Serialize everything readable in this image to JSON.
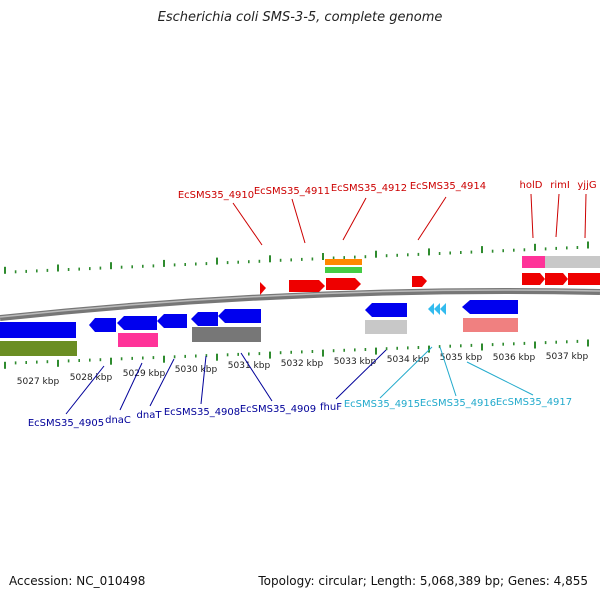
{
  "title": "Escherichia coli SMS-3-5, complete genome",
  "footer": {
    "accession": "Accession: NC_010498",
    "summary": "Topology: circular; Length: 5,068,389 bp; Genes: 4,855"
  },
  "colors": {
    "red_label": "#cc0000",
    "navy_label": "#000099",
    "cyan_label": "#22aacc",
    "tick": "#2e8b2e",
    "backbone": "#888888",
    "blue_gene": "#0000ee",
    "red_gene": "#ee0000",
    "olive_gene": "#6b8e23",
    "magenta_gene": "#ff3399",
    "gray_gene": "#777777",
    "lightgray_gene": "#c8c8c8",
    "salmon_gene": "#f08080",
    "orange_gene": "#ff8800",
    "green_gene": "#44cc44",
    "cyan_gene": "#33bbee"
  },
  "kbp_labels": [
    "5027 kbp",
    "5028 kbp",
    "5029 kbp",
    "5030 kbp",
    "5031 kbp",
    "5032 kbp",
    "5033 kbp",
    "5034 kbp",
    "5035 kbp",
    "5036 kbp",
    "5037 kbp"
  ],
  "top_gene_labels": [
    "EcSMS35_4910",
    "EcSMS35_4911",
    "EcSMS35_4912",
    "EcSMS35_4914",
    "holD",
    "rimI",
    "yjjG"
  ],
  "bottom_gene_labels_navy": [
    "EcSMS35_4905",
    "dnaC",
    "dnaT",
    "EcSMS35_4908",
    "EcSMS35_4909",
    "fhuF"
  ],
  "bottom_gene_labels_cyan": [
    "EcSMS35_4915",
    "EcSMS35_4916",
    "EcSMS35_4917"
  ]
}
